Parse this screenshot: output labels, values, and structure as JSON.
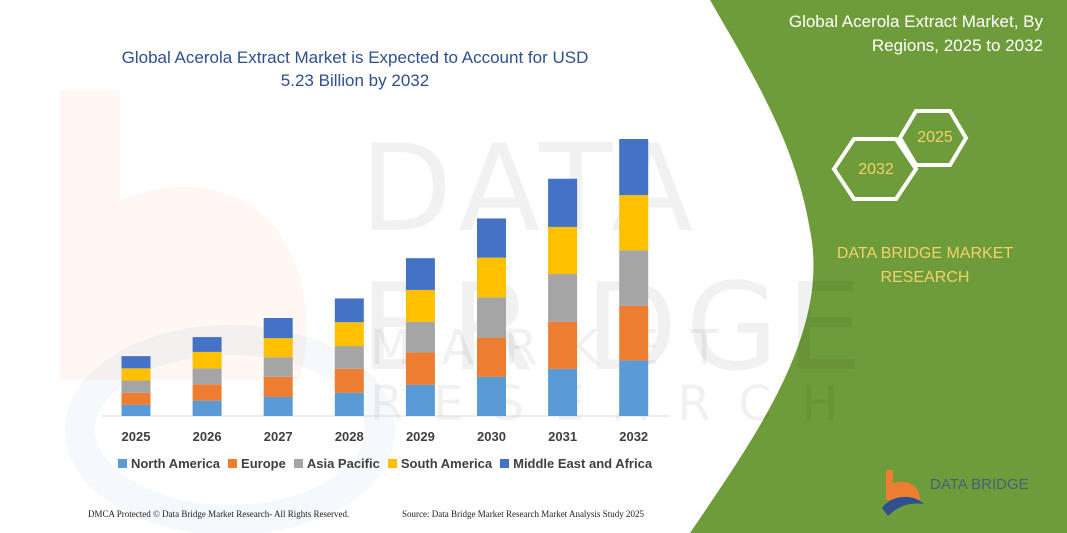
{
  "header": {
    "title": "Global Acerola Extract Market is Expected to Account for USD 5.23 Billion by 2032"
  },
  "side_panel": {
    "title": "Global Acerola Extract Market, By Regions, 2025 to 2032",
    "hex_left": "2032",
    "hex_right": "2025",
    "brand": "DATA BRIDGE MARKET RESEARCH",
    "logo_text": "DATA BRIDGE",
    "color": "#6f9c3a"
  },
  "footer": {
    "copyright": "DMCA Protected © Data Bridge Market Research- All Rights Reserved.",
    "source": "Source: Data Bridge Market Research  Market Analysis Study 2025"
  },
  "watermark": {
    "text": "DATA BRIDGE",
    "sub": "MARKET RESEARCH"
  },
  "chart_data": {
    "type": "bar",
    "stacked": true,
    "title": "Global Acerola Extract Market is Expected to Account for USD 5.23 Billion by 2032",
    "categories": [
      "2025",
      "2026",
      "2027",
      "2028",
      "2029",
      "2030",
      "2031",
      "2032"
    ],
    "ylim": [
      0,
      5.23
    ],
    "grid": false,
    "legend_position": "bottom",
    "series": [
      {
        "name": "North America",
        "color": "#5b9bd5",
        "values": [
          0.21,
          0.29,
          0.36,
          0.44,
          0.59,
          0.74,
          0.89,
          1.05
        ]
      },
      {
        "name": "Europe",
        "color": "#ed7d31",
        "values": [
          0.23,
          0.31,
          0.38,
          0.45,
          0.61,
          0.74,
          0.89,
          1.03
        ]
      },
      {
        "name": "Asia Pacific",
        "color": "#a5a5a5",
        "values": [
          0.23,
          0.3,
          0.37,
          0.43,
          0.58,
          0.76,
          0.9,
          1.05
        ]
      },
      {
        "name": "South America",
        "color": "#ffc000",
        "values": [
          0.23,
          0.31,
          0.36,
          0.45,
          0.6,
          0.75,
          0.89,
          1.04
        ]
      },
      {
        "name": "Middle East and Africa",
        "color": "#4472c4",
        "values": [
          0.23,
          0.28,
          0.38,
          0.45,
          0.6,
          0.74,
          0.91,
          1.06
        ]
      }
    ]
  }
}
